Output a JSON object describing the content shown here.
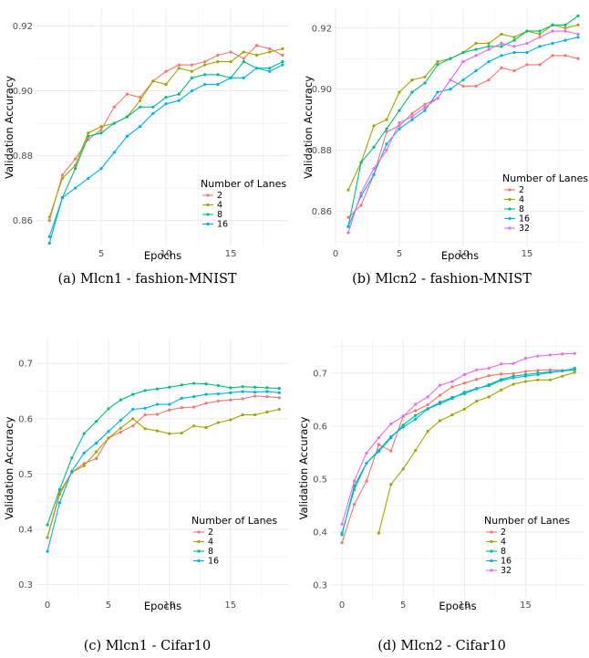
{
  "colors": {
    "2": "#F8766D",
    "4": "#A3A500",
    "8": "#00BF7D",
    "16": "#00B0F6",
    "32": "#E76BF3",
    "grid": "#EBEBEB",
    "tick_label": "#4D4D4D"
  },
  "chart_data": [
    {
      "type": "line",
      "caption": "(a) Mlcn1 - fashion-MNIST",
      "xlabel": "Epochs",
      "ylabel": "Validation Accuracy",
      "xlim": [
        0,
        19.5
      ],
      "ylim": [
        0.852,
        0.9255
      ],
      "xticks": [
        5,
        10,
        15
      ],
      "xtick_labels": [
        "5",
        "10",
        "15"
      ],
      "yticks": [
        0.86,
        0.88,
        0.9,
        0.92
      ],
      "ytick_labels": [
        "0.86",
        "0.88",
        "0.90",
        "0.92"
      ],
      "legend_title": "Number of Lanes",
      "legend_position": "center-right",
      "x": [
        1,
        2,
        3,
        4,
        5,
        6,
        7,
        8,
        9,
        10,
        11,
        12,
        13,
        14,
        15,
        16,
        17,
        18,
        19
      ],
      "series": [
        {
          "name": "2",
          "values": [
            0.86,
            0.874,
            0.879,
            0.885,
            0.888,
            0.895,
            0.899,
            0.898,
            0.903,
            0.906,
            0.908,
            0.908,
            0.909,
            0.911,
            0.912,
            0.91,
            0.914,
            0.913,
            0.911
          ]
        },
        {
          "name": "4",
          "values": [
            0.861,
            0.873,
            0.877,
            0.887,
            0.889,
            0.89,
            0.892,
            0.897,
            0.903,
            0.902,
            0.907,
            0.906,
            0.908,
            0.909,
            0.909,
            0.912,
            0.911,
            0.912,
            0.913
          ]
        },
        {
          "name": "8",
          "values": [
            0.853,
            0.867,
            0.876,
            0.886,
            0.887,
            0.89,
            0.892,
            0.895,
            0.895,
            0.898,
            0.899,
            0.904,
            0.905,
            0.905,
            0.904,
            0.909,
            0.907,
            0.907,
            0.909
          ]
        },
        {
          "name": "16",
          "values": [
            0.855,
            0.867,
            0.87,
            0.873,
            0.876,
            0.881,
            0.886,
            0.889,
            0.893,
            0.896,
            0.897,
            0.9,
            0.902,
            0.902,
            0.904,
            0.904,
            0.907,
            0.906,
            0.908
          ]
        }
      ]
    },
    {
      "type": "line",
      "caption": "(b) Mlcn2 - fashion-MNIST",
      "xlabel": "Epochs",
      "ylabel": "Validation Accuracy",
      "xlim": [
        0,
        19.5
      ],
      "ylim": [
        0.8485,
        0.9265
      ],
      "xticks": [
        0,
        5,
        10,
        15
      ],
      "xtick_labels": [
        "0",
        "5",
        "10",
        "15"
      ],
      "yticks": [
        0.86,
        0.88,
        0.9,
        0.92
      ],
      "ytick_labels": [
        "0.86",
        "0.88",
        "0.90",
        "0.92"
      ],
      "legend_title": "Number of Lanes",
      "legend_position": "bottom-right",
      "x": [
        1,
        2,
        3,
        4,
        5,
        6,
        7,
        8,
        9,
        10,
        11,
        12,
        13,
        14,
        15,
        16,
        17,
        18,
        19
      ],
      "series": [
        {
          "name": "2",
          "values": [
            0.858,
            0.862,
            0.872,
            0.886,
            0.888,
            0.892,
            0.895,
            0.897,
            0.903,
            0.901,
            0.901,
            0.903,
            0.907,
            0.906,
            0.908,
            0.908,
            0.911,
            0.911,
            0.91
          ]
        },
        {
          "name": "4",
          "values": [
            0.867,
            0.876,
            0.888,
            0.89,
            0.899,
            0.903,
            0.904,
            0.909,
            0.91,
            0.912,
            0.915,
            0.915,
            0.918,
            0.917,
            0.919,
            0.918,
            0.921,
            0.92,
            0.921
          ]
        },
        {
          "name": "8",
          "values": [
            0.855,
            0.876,
            0.881,
            0.887,
            0.893,
            0.899,
            0.902,
            0.908,
            0.91,
            0.912,
            0.913,
            0.914,
            0.914,
            0.916,
            0.919,
            0.919,
            0.921,
            0.921,
            0.924
          ]
        },
        {
          "name": "16",
          "values": [
            0.855,
            0.865,
            0.872,
            0.882,
            0.887,
            0.89,
            0.893,
            0.899,
            0.9,
            0.903,
            0.906,
            0.909,
            0.911,
            0.912,
            0.912,
            0.914,
            0.915,
            0.916,
            0.917
          ]
        },
        {
          "name": "32",
          "values": [
            0.853,
            0.866,
            0.874,
            0.88,
            0.889,
            0.891,
            0.894,
            0.897,
            0.903,
            0.909,
            0.911,
            0.913,
            0.915,
            0.914,
            0.915,
            0.917,
            0.919,
            0.919,
            0.918
          ]
        }
      ]
    },
    {
      "type": "line",
      "caption": "(c) Mlcn1 - Cifar10",
      "xlabel": "Epochs",
      "ylabel": "Validation Accuracy",
      "xlim": [
        -0.9,
        19.8
      ],
      "ylim": [
        0.276,
        0.745
      ],
      "xticks": [
        0,
        5,
        10,
        15
      ],
      "xtick_labels": [
        "0",
        "5",
        "10",
        "15"
      ],
      "yticks": [
        0.3,
        0.4,
        0.5,
        0.6,
        0.7
      ],
      "ytick_labels": [
        "0.3",
        "0.4",
        "0.5",
        "0.6",
        "0.7"
      ],
      "legend_title": "Number of Lanes",
      "legend_position": "bottom-right",
      "x": [
        0,
        1,
        2,
        3,
        4,
        5,
        6,
        7,
        8,
        9,
        10,
        11,
        12,
        13,
        14,
        15,
        16,
        17,
        18,
        19
      ],
      "series": [
        {
          "name": "2",
          "values": [
            0.385,
            0.467,
            0.503,
            0.519,
            0.528,
            0.565,
            0.576,
            0.587,
            0.607,
            0.608,
            0.616,
            0.62,
            0.621,
            0.628,
            0.632,
            0.634,
            0.636,
            0.641,
            0.64,
            0.638
          ]
        },
        {
          "name": "4",
          "values": [
            0.385,
            0.463,
            0.503,
            0.515,
            0.54,
            0.565,
            0.583,
            0.6,
            0.582,
            0.578,
            0.573,
            0.574,
            0.587,
            0.584,
            0.593,
            0.598,
            0.607,
            0.607,
            0.612,
            0.617
          ]
        },
        {
          "name": "8",
          "values": [
            0.408,
            0.472,
            0.529,
            0.573,
            0.595,
            0.618,
            0.634,
            0.644,
            0.651,
            0.654,
            0.657,
            0.661,
            0.664,
            0.663,
            0.66,
            0.656,
            0.658,
            0.657,
            0.656,
            0.655
          ]
        },
        {
          "name": "16",
          "values": [
            0.36,
            0.448,
            0.505,
            0.538,
            0.556,
            0.577,
            0.597,
            0.617,
            0.619,
            0.626,
            0.626,
            0.637,
            0.64,
            0.644,
            0.645,
            0.647,
            0.649,
            0.648,
            0.649,
            0.647
          ]
        }
      ]
    },
    {
      "type": "line",
      "caption": "(d) Mlcn2 - Cifar10",
      "xlabel": "Epochs",
      "ylabel": "Validation Accuracy",
      "xlim": [
        -0.9,
        19.8
      ],
      "ylim": [
        0.276,
        0.765
      ],
      "xticks": [
        0,
        5,
        10,
        15
      ],
      "xtick_labels": [
        "0",
        "5",
        "10",
        "15"
      ],
      "yticks": [
        0.3,
        0.4,
        0.5,
        0.6,
        0.7
      ],
      "ytick_labels": [
        "0.3",
        "0.4",
        "0.5",
        "0.6",
        "0.7"
      ],
      "legend_title": "Number of Lanes",
      "legend_position": "bottom-right",
      "x": [
        0,
        1,
        2,
        3,
        4,
        5,
        6,
        7,
        8,
        9,
        10,
        11,
        12,
        13,
        14,
        15,
        16,
        17,
        18,
        19
      ],
      "series": [
        {
          "name": "2",
          "values": [
            0.38,
            0.452,
            0.496,
            0.565,
            0.553,
            0.619,
            0.629,
            0.64,
            0.658,
            0.674,
            0.681,
            0.688,
            0.695,
            0.698,
            0.699,
            0.703,
            0.705,
            0.706,
            0.705,
            0.706
          ]
        },
        {
          "name": "4",
          "values": [
            null,
            null,
            null,
            0.398,
            0.49,
            0.519,
            0.554,
            0.59,
            0.61,
            0.621,
            0.632,
            0.647,
            0.655,
            0.668,
            0.679,
            0.684,
            0.687,
            0.687,
            0.694,
            0.701
          ]
        },
        {
          "name": "8",
          "values": [
            0.395,
            0.487,
            0.53,
            0.552,
            0.578,
            0.602,
            0.62,
            0.633,
            0.645,
            0.654,
            0.661,
            0.67,
            0.678,
            0.688,
            0.694,
            0.697,
            0.7,
            0.702,
            0.704,
            0.706
          ]
        },
        {
          "name": "16",
          "values": [
            0.398,
            0.48,
            0.53,
            0.554,
            0.58,
            0.598,
            0.613,
            0.632,
            0.642,
            0.652,
            0.664,
            0.671,
            0.676,
            0.686,
            0.691,
            0.694,
            0.697,
            0.701,
            0.704,
            0.709
          ]
        },
        {
          "name": "32",
          "values": [
            0.415,
            0.496,
            0.549,
            0.578,
            0.604,
            0.618,
            0.641,
            0.655,
            0.677,
            0.684,
            0.697,
            0.706,
            0.709,
            0.717,
            0.718,
            0.728,
            0.732,
            0.734,
            0.736,
            0.737
          ]
        }
      ]
    }
  ]
}
